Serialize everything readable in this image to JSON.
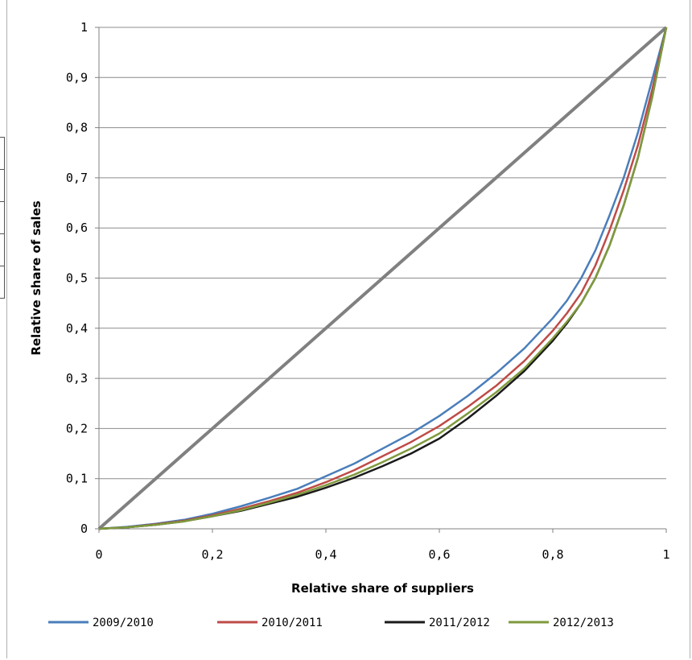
{
  "chart_data": {
    "type": "line",
    "title": "",
    "xlabel": "Relative share of suppliers",
    "ylabel": "Relative share of sales",
    "xlim": [
      0,
      1
    ],
    "ylim": [
      0,
      1
    ],
    "x_ticks": [
      "0",
      "0,2",
      "0,4",
      "0,6",
      "0,8",
      "1"
    ],
    "y_ticks": [
      "0",
      "0,1",
      "0,2",
      "0,3",
      "0,4",
      "0,5",
      "0,6",
      "0,7",
      "0,8",
      "0,9",
      "1"
    ],
    "grid": "horizontal",
    "legend_position": "bottom",
    "equality_line": {
      "points": [
        [
          0,
          0
        ],
        [
          1,
          1
        ]
      ],
      "color": "#808080"
    },
    "series": [
      {
        "name": "2009/2010",
        "color": "#4a7ebb",
        "x": [
          0,
          0.05,
          0.1,
          0.15,
          0.2,
          0.25,
          0.3,
          0.35,
          0.4,
          0.45,
          0.5,
          0.55,
          0.6,
          0.65,
          0.7,
          0.75,
          0.8,
          0.825,
          0.85,
          0.875,
          0.9,
          0.925,
          0.95,
          0.975,
          1
        ],
        "y": [
          0,
          0.004,
          0.01,
          0.018,
          0.03,
          0.045,
          0.062,
          0.08,
          0.105,
          0.13,
          0.16,
          0.19,
          0.225,
          0.265,
          0.31,
          0.36,
          0.42,
          0.455,
          0.5,
          0.555,
          0.625,
          0.7,
          0.79,
          0.895,
          1
        ]
      },
      {
        "name": "2010/2011",
        "color": "#be4b48",
        "x": [
          0,
          0.05,
          0.1,
          0.15,
          0.2,
          0.25,
          0.3,
          0.35,
          0.4,
          0.45,
          0.5,
          0.55,
          0.6,
          0.65,
          0.7,
          0.75,
          0.8,
          0.825,
          0.85,
          0.875,
          0.9,
          0.925,
          0.95,
          0.975,
          1
        ],
        "y": [
          0,
          0.003,
          0.009,
          0.016,
          0.027,
          0.04,
          0.055,
          0.072,
          0.093,
          0.117,
          0.145,
          0.173,
          0.205,
          0.243,
          0.285,
          0.335,
          0.395,
          0.43,
          0.47,
          0.525,
          0.595,
          0.675,
          0.765,
          0.875,
          1
        ]
      },
      {
        "name": "2011/2012",
        "color": "#1a1a1a",
        "x": [
          0,
          0.05,
          0.1,
          0.15,
          0.2,
          0.25,
          0.3,
          0.35,
          0.4,
          0.45,
          0.5,
          0.55,
          0.6,
          0.65,
          0.7,
          0.75,
          0.8,
          0.825,
          0.85,
          0.875,
          0.9,
          0.925,
          0.95,
          0.975,
          1
        ],
        "y": [
          0,
          0.003,
          0.008,
          0.015,
          0.025,
          0.036,
          0.05,
          0.064,
          0.082,
          0.102,
          0.125,
          0.15,
          0.18,
          0.22,
          0.265,
          0.315,
          0.375,
          0.41,
          0.45,
          0.5,
          0.565,
          0.645,
          0.74,
          0.86,
          1
        ]
      },
      {
        "name": "2012/2013",
        "color": "#7f9a3d",
        "x": [
          0,
          0.05,
          0.1,
          0.15,
          0.2,
          0.25,
          0.3,
          0.35,
          0.4,
          0.45,
          0.5,
          0.55,
          0.6,
          0.65,
          0.7,
          0.75,
          0.8,
          0.825,
          0.85,
          0.875,
          0.9,
          0.925,
          0.95,
          0.975,
          1
        ],
        "y": [
          0,
          0.003,
          0.008,
          0.015,
          0.025,
          0.037,
          0.052,
          0.068,
          0.087,
          0.108,
          0.133,
          0.16,
          0.19,
          0.23,
          0.272,
          0.32,
          0.38,
          0.413,
          0.45,
          0.5,
          0.565,
          0.645,
          0.74,
          0.86,
          1
        ]
      }
    ]
  }
}
